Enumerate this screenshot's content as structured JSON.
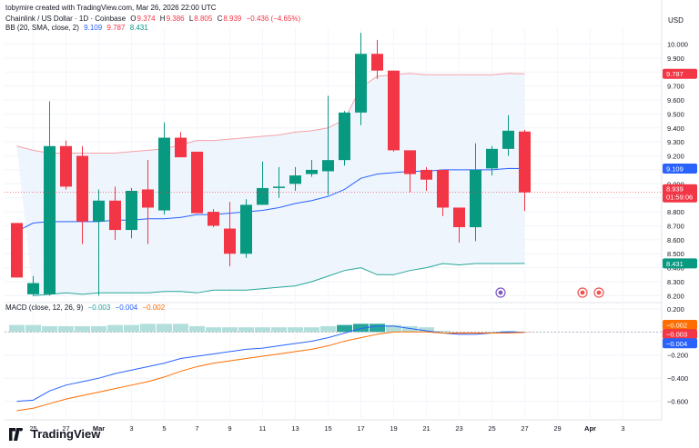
{
  "caption": "tobymire created with TradingView.com, Mar 26, 2026 22:00 UTC",
  "header": {
    "symbol": "Chainlink / US Dollar · 1D · Coinbase",
    "o_label": "O",
    "o": "9.374",
    "h_label": "H",
    "h": "9.386",
    "l_label": "L",
    "l": "8.805",
    "c_label": "C",
    "c": "8.939",
    "change": "−0.436 (−4.65%)",
    "bb_label": "BB (20, SMA, close, 2)",
    "bb_basis": "9.109",
    "bb_upper": "9.787",
    "bb_lower": "8.431"
  },
  "macd_header": {
    "label": "MACD (close, 12, 26, 9)",
    "v1": "−0.003",
    "v2": "−0.004",
    "v3": "−0.002"
  },
  "currency": "USD",
  "brand": "TradingView",
  "price_badges": {
    "upper": "9.787",
    "basis": "9.109",
    "close": "8.939",
    "countdown": "01:59:06",
    "lower": "8.431"
  },
  "macd_badges": {
    "a": "−0.002",
    "b": "−0.003",
    "c": "−0.004"
  },
  "colors": {
    "up": "#089981",
    "down": "#f23645",
    "upper_band": "#f7a1a8",
    "basis": "#2962ff",
    "lower_band": "#26a69a",
    "macd_line": "#2962ff",
    "signal_line": "#ff6d00",
    "band_fill": "#eaf3fd"
  },
  "chart_data": [
    {
      "type": "candlestick",
      "pane": "price",
      "y_axis_ticks": [
        "10.000",
        "9.900",
        "9.800",
        "9.700",
        "9.600",
        "9.500",
        "9.400",
        "9.300",
        "9.200",
        "9.100",
        "9.000",
        "8.900",
        "8.800",
        "8.700",
        "8.600",
        "8.500",
        "8.400",
        "8.300",
        "8.200"
      ],
      "ylim": [
        8.17,
        10.12
      ],
      "x_tick_labels": [
        "25",
        "27",
        "Mar",
        "3",
        "5",
        "7",
        "9",
        "11",
        "13",
        "15",
        "17",
        "19",
        "21",
        "23",
        "25",
        "27",
        "29",
        "Apr",
        "3"
      ],
      "candles": [
        {
          "o": 8.72,
          "h": 8.72,
          "l": 8.33,
          "c": 8.33
        },
        {
          "o": 8.21,
          "h": 8.34,
          "l": 8.2,
          "c": 8.29
        },
        {
          "o": 8.21,
          "h": 9.59,
          "l": 8.2,
          "c": 9.27
        },
        {
          "o": 9.27,
          "h": 9.31,
          "l": 8.96,
          "c": 8.98
        },
        {
          "o": 9.2,
          "h": 9.27,
          "l": 8.57,
          "c": 8.73
        },
        {
          "o": 8.73,
          "h": 8.96,
          "l": 8.2,
          "c": 8.88
        },
        {
          "o": 8.88,
          "h": 8.98,
          "l": 8.6,
          "c": 8.67
        },
        {
          "o": 8.67,
          "h": 8.97,
          "l": 8.61,
          "c": 8.95
        },
        {
          "o": 8.96,
          "h": 9.17,
          "l": 8.57,
          "c": 8.83
        },
        {
          "o": 8.81,
          "h": 9.44,
          "l": 8.78,
          "c": 9.33
        },
        {
          "o": 9.33,
          "h": 9.37,
          "l": 9.19,
          "c": 9.19
        },
        {
          "o": 9.23,
          "h": 9.23,
          "l": 8.79,
          "c": 8.79
        },
        {
          "o": 8.8,
          "h": 8.82,
          "l": 8.69,
          "c": 8.7
        },
        {
          "o": 8.68,
          "h": 8.87,
          "l": 8.41,
          "c": 8.5
        },
        {
          "o": 8.5,
          "h": 8.89,
          "l": 8.47,
          "c": 8.85
        },
        {
          "o": 8.85,
          "h": 9.16,
          "l": 8.85,
          "c": 8.97
        },
        {
          "o": 8.97,
          "h": 9.12,
          "l": 8.9,
          "c": 8.98
        },
        {
          "o": 9.0,
          "h": 9.12,
          "l": 8.95,
          "c": 9.06
        },
        {
          "o": 9.07,
          "h": 9.17,
          "l": 9.05,
          "c": 9.1
        },
        {
          "o": 9.09,
          "h": 9.63,
          "l": 8.92,
          "c": 9.17
        },
        {
          "o": 9.17,
          "h": 9.52,
          "l": 9.13,
          "c": 9.51
        },
        {
          "o": 9.51,
          "h": 10.08,
          "l": 9.42,
          "c": 9.93
        },
        {
          "o": 9.93,
          "h": 10.03,
          "l": 9.75,
          "c": 9.81
        },
        {
          "o": 9.81,
          "h": 9.81,
          "l": 9.23,
          "c": 9.24
        },
        {
          "o": 9.24,
          "h": 9.24,
          "l": 8.94,
          "c": 9.07
        },
        {
          "o": 9.1,
          "h": 9.12,
          "l": 8.95,
          "c": 9.03
        },
        {
          "o": 9.1,
          "h": 9.1,
          "l": 8.77,
          "c": 8.83
        },
        {
          "o": 8.83,
          "h": 8.83,
          "l": 8.58,
          "c": 8.69
        },
        {
          "o": 8.69,
          "h": 9.29,
          "l": 8.59,
          "c": 9.1
        },
        {
          "o": 9.11,
          "h": 9.27,
          "l": 9.06,
          "c": 9.25
        },
        {
          "o": 9.25,
          "h": 9.49,
          "l": 9.2,
          "c": 9.38
        },
        {
          "o": 9.374,
          "h": 9.386,
          "l": 8.805,
          "c": 8.939
        }
      ],
      "bollinger": {
        "upper": [
          9.27,
          9.24,
          9.22,
          9.22,
          9.22,
          9.22,
          9.22,
          9.23,
          9.24,
          9.25,
          9.28,
          9.31,
          9.31,
          9.32,
          9.33,
          9.34,
          9.35,
          9.37,
          9.38,
          9.4,
          9.46,
          9.69,
          9.77,
          9.78,
          9.79,
          9.78,
          9.78,
          9.78,
          9.78,
          9.78,
          9.79,
          9.787
        ],
        "basis": [
          8.66,
          8.72,
          8.73,
          8.73,
          8.73,
          8.73,
          8.74,
          8.74,
          8.75,
          8.75,
          8.76,
          8.78,
          8.78,
          8.79,
          8.8,
          8.81,
          8.83,
          8.86,
          8.88,
          8.91,
          8.96,
          9.04,
          9.07,
          9.08,
          9.09,
          9.09,
          9.1,
          9.1,
          9.1,
          9.1,
          9.11,
          9.109
        ],
        "lower": [
          null,
          8.2,
          8.21,
          8.22,
          8.21,
          8.22,
          8.22,
          8.22,
          8.22,
          8.23,
          8.23,
          8.22,
          8.24,
          8.24,
          8.24,
          8.25,
          8.26,
          8.27,
          8.3,
          8.34,
          8.38,
          8.4,
          8.35,
          8.35,
          8.38,
          8.4,
          8.43,
          8.42,
          8.43,
          8.43,
          8.43,
          8.431
        ]
      }
    },
    {
      "type": "macd",
      "pane": "macd",
      "y_axis_ticks": [
        "0.200",
        "0.000",
        "−0.200",
        "−0.400",
        "−0.600"
      ],
      "ylim": [
        -0.76,
        0.23
      ],
      "histogram": [
        0.06,
        0.06,
        0.05,
        0.05,
        0.05,
        0.05,
        0.06,
        0.06,
        0.07,
        0.07,
        0.07,
        0.05,
        0.04,
        0.04,
        0.04,
        0.04,
        0.04,
        0.04,
        0.04,
        0.05,
        0.06,
        0.07,
        0.07,
        0.06,
        0.05,
        0.04,
        0.01,
        -0.02,
        -0.01,
        0.0,
        0.01,
        -0.002
      ],
      "macd": [
        -0.6,
        -0.59,
        -0.51,
        -0.46,
        -0.43,
        -0.4,
        -0.36,
        -0.33,
        -0.3,
        -0.27,
        -0.23,
        -0.21,
        -0.19,
        -0.17,
        -0.15,
        -0.14,
        -0.12,
        -0.1,
        -0.08,
        -0.05,
        -0.01,
        0.03,
        0.05,
        0.05,
        0.03,
        0.01,
        -0.01,
        -0.02,
        -0.02,
        -0.01,
        0.0,
        -0.003
      ],
      "signal": [
        -0.68,
        -0.66,
        -0.62,
        -0.58,
        -0.55,
        -0.52,
        -0.49,
        -0.46,
        -0.43,
        -0.39,
        -0.34,
        -0.3,
        -0.27,
        -0.25,
        -0.23,
        -0.21,
        -0.19,
        -0.17,
        -0.15,
        -0.12,
        -0.08,
        -0.05,
        -0.02,
        0.0,
        0.0,
        0.0,
        -0.01,
        -0.01,
        -0.01,
        -0.01,
        -0.01,
        -0.004
      ]
    }
  ]
}
